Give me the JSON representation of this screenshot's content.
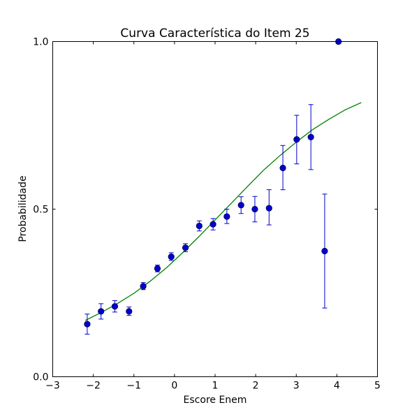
{
  "chart_data": {
    "type": "scatter",
    "title": "Curva Característica do Item 25",
    "xlabel": "Escore Enem",
    "ylabel": "Probabilidade",
    "xlim": [
      -3,
      5
    ],
    "ylim": [
      0,
      1
    ],
    "xticks": [
      -3,
      -2,
      -1,
      0,
      1,
      2,
      3,
      4,
      5
    ],
    "xtick_labels": [
      "−3",
      "−2",
      "−1",
      "0",
      "1",
      "2",
      "3",
      "4",
      "5"
    ],
    "yticks": [
      0,
      0.5,
      1
    ],
    "ytick_labels": [
      "0.0",
      "0.5",
      "1.0"
    ],
    "grid": false,
    "colors": {
      "points": "#0000cc",
      "errorbars": "#0000cc",
      "curve": "#008000"
    },
    "series": [
      {
        "kind": "errorbar-points",
        "points": [
          {
            "x": -2.15,
            "y": 0.157,
            "lo": 0.127,
            "hi": 0.187
          },
          {
            "x": -1.81,
            "y": 0.195,
            "lo": 0.172,
            "hi": 0.218
          },
          {
            "x": -1.47,
            "y": 0.21,
            "lo": 0.193,
            "hi": 0.227
          },
          {
            "x": -1.12,
            "y": 0.195,
            "lo": 0.183,
            "hi": 0.208
          },
          {
            "x": -0.77,
            "y": 0.27,
            "lo": 0.26,
            "hi": 0.281
          },
          {
            "x": -0.42,
            "y": 0.323,
            "lo": 0.313,
            "hi": 0.333
          },
          {
            "x": -0.08,
            "y": 0.358,
            "lo": 0.347,
            "hi": 0.37
          },
          {
            "x": 0.27,
            "y": 0.385,
            "lo": 0.373,
            "hi": 0.397
          },
          {
            "x": 0.61,
            "y": 0.45,
            "lo": 0.435,
            "hi": 0.465
          },
          {
            "x": 0.95,
            "y": 0.455,
            "lo": 0.438,
            "hi": 0.472
          },
          {
            "x": 1.29,
            "y": 0.478,
            "lo": 0.457,
            "hi": 0.5
          },
          {
            "x": 1.64,
            "y": 0.512,
            "lo": 0.487,
            "hi": 0.537
          },
          {
            "x": 1.98,
            "y": 0.5,
            "lo": 0.462,
            "hi": 0.538
          },
          {
            "x": 2.33,
            "y": 0.503,
            "lo": 0.453,
            "hi": 0.558
          },
          {
            "x": 2.67,
            "y": 0.623,
            "lo": 0.558,
            "hi": 0.69
          },
          {
            "x": 3.01,
            "y": 0.708,
            "lo": 0.635,
            "hi": 0.78
          },
          {
            "x": 3.36,
            "y": 0.715,
            "lo": 0.618,
            "hi": 0.812
          },
          {
            "x": 3.7,
            "y": 0.375,
            "lo": 0.205,
            "hi": 0.545
          },
          {
            "x": 4.04,
            "y": 1.0
          }
        ]
      },
      {
        "kind": "fitted-curve",
        "x": [
          -2.2,
          -1.8,
          -1.4,
          -1.0,
          -0.6,
          -0.2,
          0.2,
          0.6,
          1.0,
          1.4,
          1.8,
          2.2,
          2.6,
          3.0,
          3.4,
          3.8,
          4.2,
          4.6
        ],
        "y": [
          0.168,
          0.192,
          0.219,
          0.249,
          0.285,
          0.325,
          0.37,
          0.418,
          0.468,
          0.518,
          0.568,
          0.617,
          0.66,
          0.7,
          0.737,
          0.768,
          0.796,
          0.818
        ]
      }
    ]
  }
}
